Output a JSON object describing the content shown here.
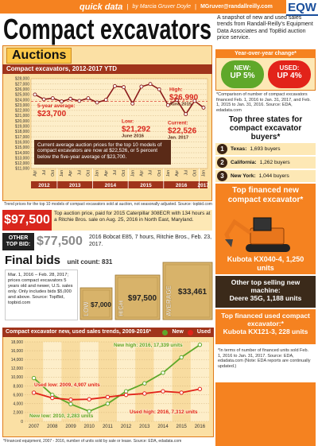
{
  "header": {
    "section": "quick data",
    "byline": "by Marcia Gruver Doyle",
    "email": "MGruver@randallreilly.com",
    "logo": "EQW"
  },
  "title": "Compact excavators",
  "intro": "A snapshot of new and used sales trends from Randall-Reilly's Equipment Data Associates and TopBid auction price service.",
  "chart_data": [
    {
      "type": "line",
      "section_title": "Auctions",
      "title": "Compact excavators, 2012-2017 YTD",
      "years": [
        {
          "year": "2012",
          "months": [
            "Apr",
            "Jul",
            "Oct"
          ]
        },
        {
          "year": "2013",
          "months": [
            "Jan",
            "Apr",
            "Jul",
            "Oct"
          ]
        },
        {
          "year": "2014",
          "months": [
            "Jan",
            "Apr",
            "Jul",
            "Oct"
          ]
        },
        {
          "year": "2015",
          "months": [
            "Jan",
            "Apr",
            "Jul",
            "Oct"
          ]
        },
        {
          "year": "2016",
          "months": [
            "Jan",
            "Apr",
            "Jul",
            "Oct"
          ]
        },
        {
          "year": "2017",
          "months": [
            "Jan"
          ]
        }
      ],
      "values": [
        25000,
        24100,
        24300,
        23700,
        24200,
        23800,
        24300,
        23500,
        24000,
        26600,
        26400,
        23300,
        26500,
        26990,
        26000,
        23000,
        24000,
        21292,
        23800,
        22526
      ],
      "color": "#8b1a1a",
      "ylim": [
        11000,
        28000
      ],
      "yticks": [
        {
          "value": 11000,
          "label": "$11,000"
        },
        {
          "value": 12000,
          "label": "$12,000"
        },
        {
          "value": 13000,
          "label": "$13,000"
        },
        {
          "value": 14000,
          "label": "$14,000"
        },
        {
          "value": 15000,
          "label": "$15,000"
        },
        {
          "value": 16000,
          "label": "$16,000"
        },
        {
          "value": 17000,
          "label": "$17,000"
        },
        {
          "value": 18000,
          "label": "$18,000"
        },
        {
          "value": 19000,
          "label": "$19,000"
        },
        {
          "value": 20000,
          "label": "$20,000"
        },
        {
          "value": 21000,
          "label": "$21,000"
        },
        {
          "value": 22000,
          "label": "$22,000"
        },
        {
          "value": 23000,
          "label": "$23,000"
        },
        {
          "value": 24000,
          "label": "$24,000"
        },
        {
          "value": 25000,
          "label": "$25,000"
        },
        {
          "value": 26000,
          "label": "$26,000"
        },
        {
          "value": 27000,
          "label": "$27,000"
        },
        {
          "value": 28000,
          "label": "$28,000"
        }
      ],
      "grid": true,
      "average": {
        "value": 23700,
        "lines": [
          "5-year average:",
          "$23,700"
        ]
      },
      "annotations": [
        {
          "lines": [
            "High:",
            "$26,990",
            "June 2015"
          ]
        },
        {
          "lines": [
            "Low:",
            "$21,292",
            "June 2016"
          ]
        },
        {
          "lines": [
            "Current:",
            "$22,526",
            "Jan. 2017"
          ]
        }
      ],
      "note": "Current average auction prices for the top 10 models of compact excavators are now at $22,526, or 5 percent below the five-year average of $23,700.",
      "source": "Trend prices for the top 10 models of compact excavators sold at auction, not seasonally adjusted. Source: topbid.com"
    },
    {
      "type": "line",
      "title": "Compact excavator new, used sales trends, 2009-2016*",
      "categories": [
        "2007",
        "2008",
        "2009",
        "2010",
        "2011",
        "2012",
        "2013",
        "2014",
        "2015",
        "2016"
      ],
      "series": [
        {
          "name": "New",
          "color": "#5fa82a",
          "values": [
            9800,
            6000,
            3900,
            2283,
            4000,
            6800,
            8600,
            11000,
            14500,
            17339
          ]
        },
        {
          "name": "Used",
          "color": "#e2231a",
          "values": [
            6500,
            5300,
            4907,
            5000,
            5500,
            6000,
            6300,
            6800,
            6500,
            7312
          ]
        }
      ],
      "ylim": [
        0,
        18000
      ],
      "yticks": [
        0,
        {
          "value": 2000,
          "label": "2,000"
        },
        {
          "value": 4000,
          "label": "4,000"
        },
        {
          "value": 6000,
          "label": "6,000"
        },
        {
          "value": 8000,
          "label": "8,000"
        },
        {
          "value": 10000,
          "label": "10,000"
        },
        {
          "value": 12000,
          "label": "12,000"
        },
        {
          "value": 14000,
          "label": "14,000"
        },
        {
          "value": 16000,
          "label": "16,000"
        },
        {
          "value": 18000,
          "label": "18,000"
        }
      ],
      "grid": true,
      "legend": "top-right",
      "annotations": [
        "New high: 2016, 17,339 units",
        "Used low: 2009, 4,907 units",
        "New low: 2010, 2,283 units",
        "Used high: 2016, 7,312 units"
      ],
      "footnote": "*Financed equipment, 2007 - 2016, number of units sold by sale or lease. Source: EDA, edadata.com"
    }
  ],
  "year_over_year": {
    "title": "Year-over-year change*",
    "new": {
      "label": "NEW:",
      "change": "UP 5%"
    },
    "used": {
      "label": "USED:",
      "change": "UP 4%"
    },
    "note": "*Comparison of number of compact excavators financed Feb. 1, 2016 to Jan. 31, 2017, and Feb. 1, 2015 to Jan. 31, 2016. Source: EDA, edadata.com"
  },
  "top_states": {
    "title": "Top three states for compact excavator buyers*",
    "items": [
      {
        "rank": 1,
        "state": "Texas:",
        "buyers": "1,693 buyers"
      },
      {
        "rank": 2,
        "state": "California:",
        "buyers": "1,262 buyers"
      },
      {
        "rank": 3,
        "state": "New York:",
        "buyers": "1,044 buyers"
      }
    ]
  },
  "top_bid": {
    "price": "$97,500",
    "text": "Top auction price, paid for 2015 Caterpillar 308ECR with 134 hours at a Ritchie Bros. sale on Aug. 25, 2016 in North East, Maryland.",
    "other_label": "OTHER TOP BID:",
    "other_price": "$77,500",
    "other_text": "2016 Bobcat E85, 7 hours, Ritchie Bros., Feb. 23, 2017."
  },
  "final_bids": {
    "title": "Final bids",
    "unit_count": "unit count: 831",
    "text": "Mar. 1, 2016 – Feb. 28, 2017; prices compact excavators 5 years old and newer, U.S. sales only. Only includes bids $5,000 and above. Source: TopBid, topbid.com",
    "boxes": [
      {
        "label": "LOW",
        "value": "$7,000"
      },
      {
        "label": "HIGH",
        "value": "$97,500"
      },
      {
        "label": "AVERAGE",
        "value": "$33,461"
      }
    ]
  },
  "top_new": {
    "title": "Top financed new compact excavator*",
    "model": "Kubota KX040-4, 1,250 units"
  },
  "other_new": {
    "title": "Other top selling new machine:",
    "model": "Deere 35G, 1,188 units"
  },
  "top_used": {
    "title": "Top financed used compact excavator:*",
    "model": "Kubota KX121-3, 228 units"
  },
  "finance_note": "*In terms of number of financed units sold Feb. 1, 2016 to Jan. 31, 2017. Source: EDA, edadata.com (Note: EDA reports are continually updated.)"
}
